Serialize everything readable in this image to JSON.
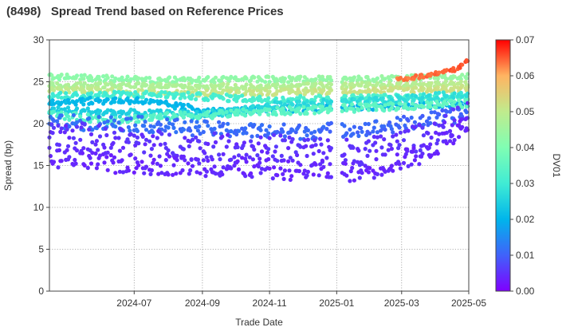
{
  "title": "(8498)   Spread Trend based on Reference Prices",
  "chart_data": {
    "type": "scatter",
    "title": "(8498)   Spread Trend based on Reference Prices",
    "xlabel": "Trade Date",
    "ylabel": "Spread (bp)",
    "colorbar_label": "DV01",
    "xlim": [
      "2024-04-15",
      "2025-05-01"
    ],
    "ylim": [
      0,
      30
    ],
    "x_ticks": [
      "2024-07",
      "2024-09",
      "2024-11",
      "2025-01",
      "2025-03",
      "2025-05"
    ],
    "y_ticks": [
      "0",
      "5",
      "10",
      "15",
      "20",
      "25",
      "30"
    ],
    "colorbar_range": [
      0,
      0.07
    ],
    "colorbar_ticks": [
      "0.00",
      "0.01",
      "0.02",
      "0.03",
      "0.04",
      "0.05",
      "0.06",
      "0.07"
    ],
    "colormap": [
      "#7f00ff",
      "#4062fa",
      "#00b5eb",
      "#40ecd4",
      "#80feb3",
      "#c0eb8d",
      "#ffb462",
      "#ff0000"
    ],
    "grid": true,
    "series": [
      {
        "start": "2024-04-15",
        "end": "2025-04-30",
        "y": [
          [
            0,
            25.6
          ],
          [
            0.25,
            25.2
          ],
          [
            0.5,
            25.3
          ],
          [
            0.75,
            25.3
          ],
          [
            1,
            25.6
          ]
        ],
        "spread": 0.35,
        "dv01": [
          0.042,
          0.044
        ]
      },
      {
        "start": "2024-04-15",
        "end": "2025-04-30",
        "y": [
          [
            0,
            24.6
          ],
          [
            0.5,
            24.4
          ],
          [
            1,
            24.8
          ]
        ],
        "spread": 0.3,
        "dv01": [
          0.047,
          0.049
        ]
      },
      {
        "start": "2024-04-15",
        "end": "2025-04-30",
        "y": [
          [
            0,
            24.1
          ],
          [
            0.3,
            23.6
          ],
          [
            0.6,
            23.8
          ],
          [
            1,
            24.2
          ]
        ],
        "spread": 0.35,
        "dv01": [
          0.05,
          0.052
        ]
      },
      {
        "start": "2024-04-15",
        "end": "2025-04-30",
        "y": [
          [
            0,
            23.3
          ],
          [
            0.25,
            23.5
          ],
          [
            0.5,
            22.9
          ],
          [
            1,
            23.2
          ]
        ],
        "spread": 0.4,
        "dv01": [
          0.03,
          0.033
        ]
      },
      {
        "start": "2024-04-15",
        "end": "2025-04-30",
        "y": [
          [
            0,
            22.6
          ],
          [
            0.2,
            22.8
          ],
          [
            0.4,
            21.4
          ],
          [
            0.6,
            21.8
          ],
          [
            1,
            22.3
          ]
        ],
        "spread": 0.4,
        "dv01": [
          0.021,
          0.019
        ]
      },
      {
        "start": "2024-04-15",
        "end": "2025-04-30",
        "y": [
          [
            0,
            21.6
          ],
          [
            0.15,
            21.3
          ],
          [
            0.35,
            21.0
          ],
          [
            0.55,
            22.2
          ],
          [
            0.75,
            22.6
          ],
          [
            1,
            23.5
          ]
        ],
        "spread": 0.45,
        "dv01": [
          0.024,
          0.028
        ]
      },
      {
        "start": "2024-04-15",
        "end": "2025-04-30",
        "y": [
          [
            0,
            21.1
          ],
          [
            0.15,
            20.4
          ],
          [
            0.3,
            20.9
          ],
          [
            0.6,
            21.6
          ],
          [
            1,
            22.4
          ]
        ],
        "spread": 0.45,
        "dv01": [
          0.033,
          0.036
        ]
      },
      {
        "start": "2024-04-15",
        "end": "2025-04-30",
        "y": [
          [
            0,
            20.2
          ],
          [
            0.2,
            20.0
          ],
          [
            0.4,
            19.3
          ],
          [
            0.6,
            19.0
          ],
          [
            0.8,
            19.6
          ],
          [
            1,
            21.2
          ]
        ],
        "spread": 0.9,
        "dv01": [
          0.012,
          0.01
        ]
      },
      {
        "start": "2024-04-15",
        "end": "2025-04-30",
        "y": [
          [
            0,
            19.0
          ],
          [
            0.15,
            18.0
          ],
          [
            0.35,
            17.3
          ],
          [
            0.55,
            17.1
          ],
          [
            0.75,
            16.6
          ],
          [
            0.9,
            18.5
          ],
          [
            1,
            21.0
          ]
        ],
        "spread": 1.6,
        "dv01": [
          0.005,
          0.005
        ]
      },
      {
        "start": "2024-04-15",
        "end": "2025-04-30",
        "y": [
          [
            0,
            16.0
          ],
          [
            0.15,
            15.2
          ],
          [
            0.35,
            15.0
          ],
          [
            0.55,
            14.5
          ],
          [
            0.75,
            14.3
          ],
          [
            0.9,
            16.5
          ],
          [
            1,
            20.0
          ]
        ],
        "spread": 1.2,
        "dv01": [
          0.004,
          0.004
        ]
      },
      {
        "start": "2025-02-25",
        "end": "2025-04-30",
        "y": [
          [
            0,
            25.3
          ],
          [
            0.5,
            25.8
          ],
          [
            0.85,
            26.5
          ],
          [
            1,
            27.7
          ]
        ],
        "spread": 0.25,
        "dv01": [
          0.063,
          0.066
        ]
      }
    ]
  }
}
